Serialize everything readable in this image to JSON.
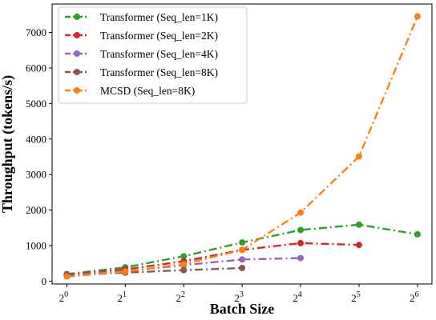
{
  "chart_data": {
    "type": "line",
    "xlabel": "Batch Size",
    "ylabel": "Throughput (tokens/s)",
    "x_scale": "log2",
    "x_ticks": [
      1,
      2,
      4,
      8,
      16,
      32,
      64
    ],
    "x_tick_base": "2",
    "x_tick_exponents": [
      "0",
      "1",
      "2",
      "3",
      "4",
      "5",
      "6"
    ],
    "xlim": [
      0.84,
      76
    ],
    "ylim": [
      -80,
      7800
    ],
    "y_ticks": [
      0,
      1000,
      2000,
      3000,
      4000,
      5000,
      6000,
      7000
    ],
    "y_tick_labels": [
      "0",
      "1000",
      "2000",
      "3000",
      "4000",
      "5000",
      "6000",
      "7000"
    ],
    "grid": false,
    "legend_position": "top-left",
    "series": [
      {
        "name": "Transformer (Seq_len=1K)",
        "color": "#2ca02c",
        "x": [
          1,
          2,
          4,
          8,
          16,
          32,
          64
        ],
        "values": [
          200,
          390,
          700,
          1090,
          1440,
          1590,
          1320
        ]
      },
      {
        "name": "Transformer (Seq_len=2K)",
        "color": "#d62728",
        "x": [
          1,
          2,
          4,
          8,
          16,
          32
        ],
        "values": [
          190,
          330,
          560,
          880,
          1070,
          1020
        ]
      },
      {
        "name": "Transformer (Seq_len=4K)",
        "color": "#9467bd",
        "x": [
          1,
          2,
          4,
          8,
          16
        ],
        "values": [
          180,
          280,
          450,
          610,
          650
        ]
      },
      {
        "name": "Transformer (Seq_len=8K)",
        "color": "#8c564b",
        "x": [
          1,
          2,
          4,
          8
        ],
        "values": [
          170,
          240,
          310,
          370
        ]
      },
      {
        "name": "MCSD (Seq_len=8K)",
        "color": "#ff7f0e",
        "x": [
          1,
          2,
          4,
          8,
          16,
          32,
          64
        ],
        "values": [
          130,
          270,
          480,
          880,
          1930,
          3510,
          7450
        ]
      }
    ]
  }
}
